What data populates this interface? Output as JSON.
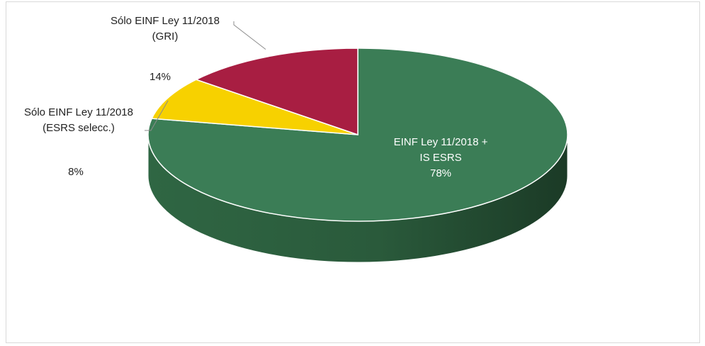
{
  "chart_data": {
    "type": "pie",
    "style": "3d",
    "slices": [
      {
        "label_line1": "EINF Ley 11/2018 +",
        "label_line2": "IS ESRS",
        "value": 78,
        "pct_label": "78%",
        "color": "#3b7d56",
        "side_color": "#22492f"
      },
      {
        "label_line1": "Sólo EINF Ley 11/2018",
        "label_line2": "(ESRS selecc.)",
        "value": 8,
        "pct_label": "8%",
        "color": "#f7d100",
        "side_color": "#b89a00"
      },
      {
        "label_line1": "Sólo EINF Ley 11/2018",
        "label_line2": "(GRI)",
        "value": 14,
        "pct_label": "14%",
        "color": "#a81e42",
        "side_color": "#6e1029"
      }
    ]
  }
}
